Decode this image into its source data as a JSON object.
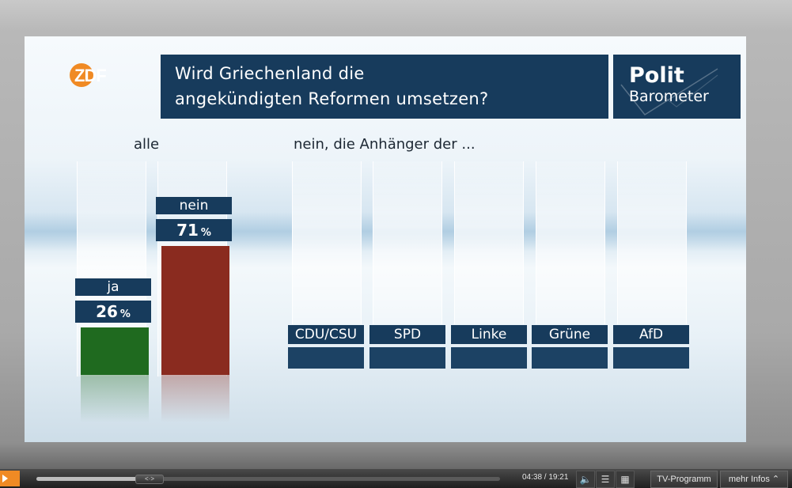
{
  "broadcaster": {
    "logo_text": "ZDF"
  },
  "title": {
    "line1": "Wird Griechenland die",
    "line2": "angekündigten Reformen umsetzen?"
  },
  "brand": {
    "line1": "Polit",
    "line2": "Barometer"
  },
  "sections": {
    "all": "alle",
    "parties": "nein, die Anhänger der ..."
  },
  "chart_data": {
    "type": "bar",
    "title": "Wird Griechenland die angekündigten Reformen umsetzen?",
    "unit": "%",
    "groups": [
      {
        "label": "alle",
        "bars": [
          {
            "label": "ja",
            "value": 26,
            "display": "26",
            "color": "#1f6a1f"
          },
          {
            "label": "nein",
            "value": 71,
            "display": "71",
            "color": "#8a2b1f"
          }
        ]
      },
      {
        "label": "nein, die Anhänger der ...",
        "categories": [
          "CDU/CSU",
          "SPD",
          "Linke",
          "Grüne",
          "AfD"
        ],
        "values": [
          null,
          null,
          null,
          null,
          null
        ]
      }
    ]
  },
  "player": {
    "progress": 0.2302,
    "scrub_label": "<·>",
    "time": "04:38 / 19:21",
    "buttons": {
      "tv": "TV-Programm",
      "more": "mehr Infos"
    },
    "icons": {
      "mute": "speaker-icon",
      "settings": "sliders-icon",
      "chat": "chat-icon",
      "chevron": "chevron-up-icon"
    }
  }
}
